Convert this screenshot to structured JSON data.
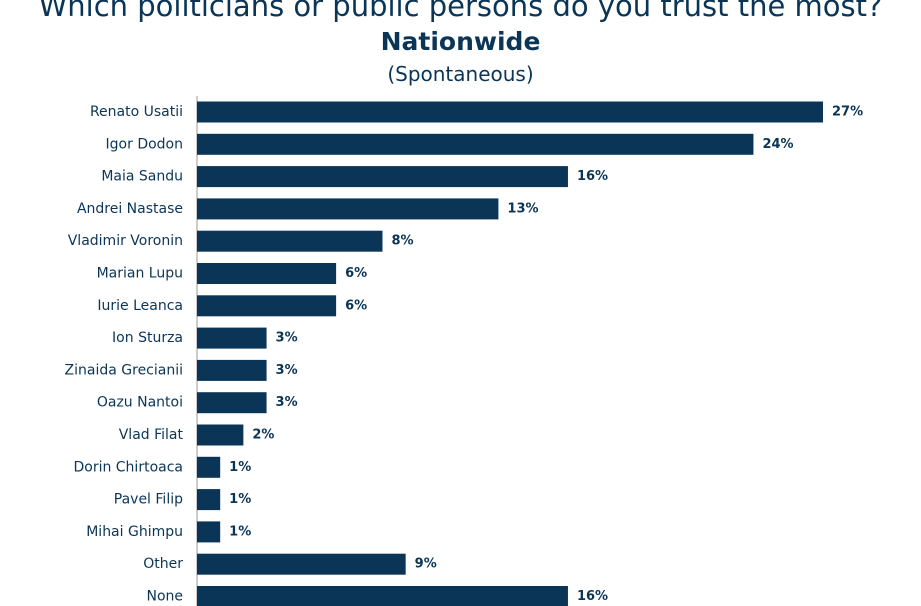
{
  "chart_data": {
    "type": "bar",
    "orientation": "horizontal",
    "title": "Which politicians or public persons do you trust the most?",
    "subtitle": "Nationwide",
    "note": "(Spontaneous)",
    "categories": [
      "Renato Usatii",
      "Igor Dodon",
      "Maia Sandu",
      "Andrei Nastase",
      "Vladimir Voronin",
      "Marian Lupu",
      "Iurie Leanca",
      "Ion Sturza",
      "Zinaida Grecianii",
      "Oazu Nantoi",
      "Vlad Filat",
      "Dorin Chirtoaca",
      "Pavel Filip",
      "Mihai Ghimpu",
      "Other",
      "None"
    ],
    "values": [
      27,
      24,
      16,
      13,
      8,
      6,
      6,
      3,
      3,
      3,
      2,
      1,
      1,
      1,
      9,
      16
    ],
    "value_labels": [
      "27%",
      "24%",
      "16%",
      "13%",
      "8%",
      "6%",
      "6%",
      "3%",
      "3%",
      "3%",
      "2%",
      "1%",
      "1%",
      "1%",
      "9%",
      "16%"
    ],
    "unit": "%",
    "xlim": [
      0,
      27
    ],
    "grid": false,
    "legend": "none",
    "bar_color": "#0b3556",
    "text_color": "#0b3556"
  }
}
